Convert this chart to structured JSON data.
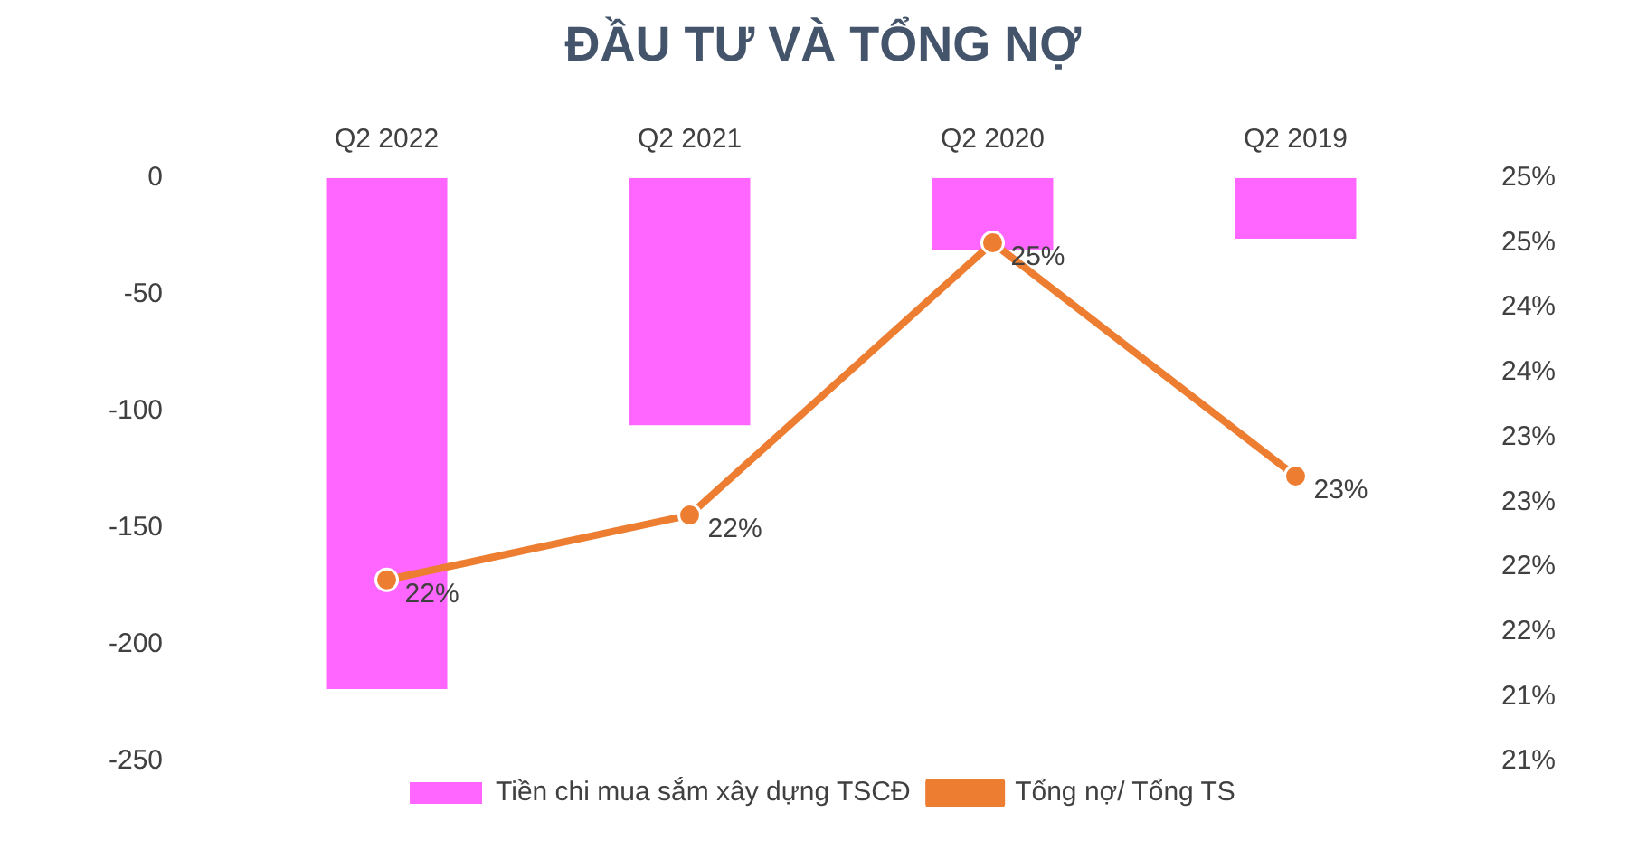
{
  "chart_data": {
    "type": "bar",
    "title": "ĐẦU TƯ VÀ TỔNG NỢ",
    "categories": [
      "Q2 2022",
      "Q2 2021",
      "Q2 2020",
      "Q2 2019"
    ],
    "series": [
      {
        "name": "Tiền chi mua sắm xây dựng TSCĐ",
        "color": "#ff66ff",
        "values": [
          -219,
          -106,
          -31,
          -26
        ]
      },
      {
        "name": "Tổng nợ/ Tổng TS",
        "type": "line",
        "axis": "y2",
        "color": "#ed7d31",
        "values": [
          21.9,
          22.4,
          24.5,
          22.7
        ],
        "value_labels": [
          "22%",
          "22%",
          "25%",
          "23%"
        ]
      }
    ],
    "ylim": [
      -250,
      0
    ],
    "yticks": [
      -250,
      -200,
      -150,
      -100,
      -50,
      0
    ],
    "y2lim": [
      20.5,
      25
    ],
    "y2ticks": [
      {
        "value": 20.5,
        "label": "21%"
      },
      {
        "value": 21,
        "label": "21%"
      },
      {
        "value": 21.5,
        "label": "22%"
      },
      {
        "value": 22,
        "label": "22%"
      },
      {
        "value": 22.5,
        "label": "23%"
      },
      {
        "value": 23,
        "label": "23%"
      },
      {
        "value": 23.5,
        "label": "24%"
      },
      {
        "value": 24,
        "label": "24%"
      },
      {
        "value": 24.5,
        "label": "25%"
      },
      {
        "value": 25,
        "label": "25%"
      }
    ],
    "grid": false,
    "legend": "bottom",
    "marker": "circle",
    "line_style": "solid"
  }
}
